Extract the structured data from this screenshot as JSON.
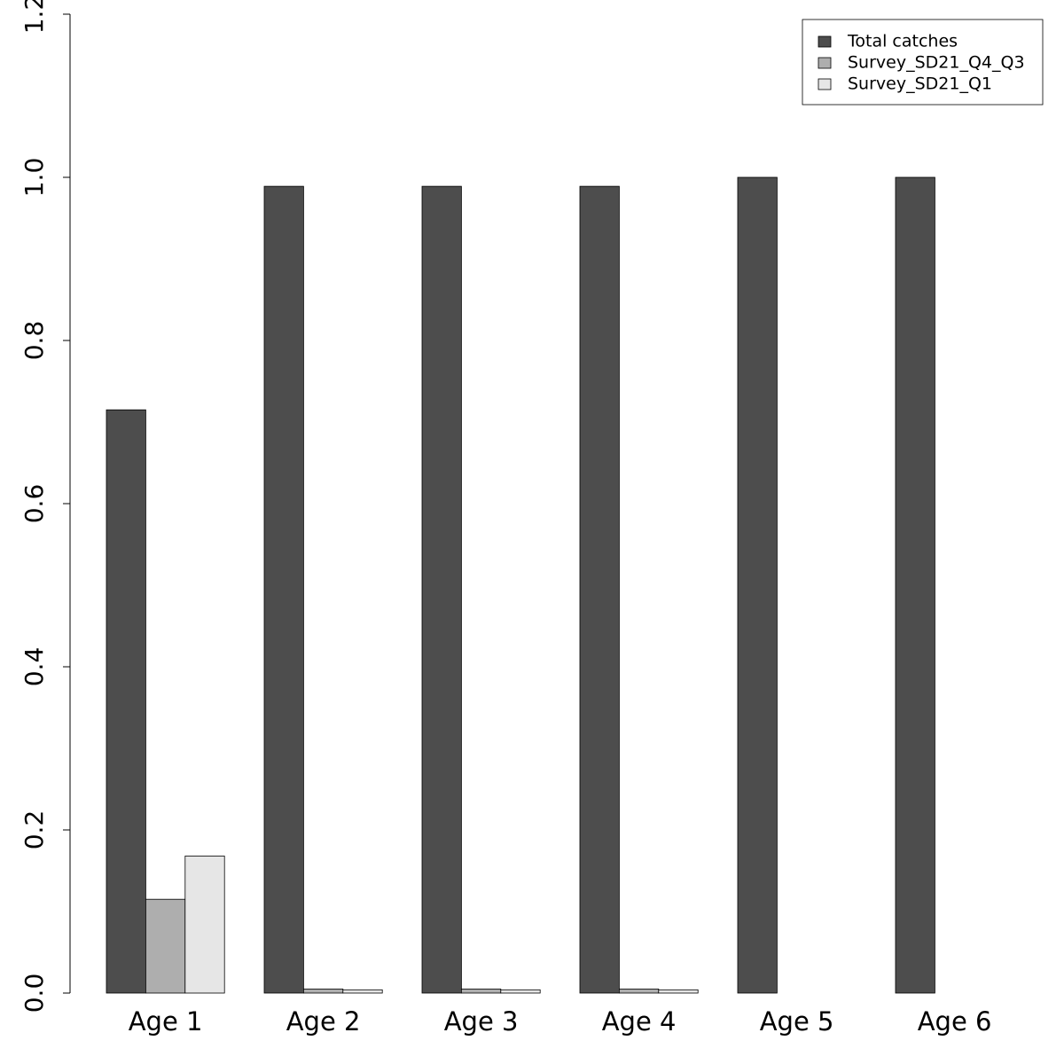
{
  "chart_data": {
    "type": "bar",
    "categories": [
      "Age 1",
      "Age 2",
      "Age 3",
      "Age 4",
      "Age 5",
      "Age 6"
    ],
    "series": [
      {
        "name": "Total catches",
        "color": "#4d4d4d",
        "values": [
          0.715,
          0.989,
          0.989,
          0.989,
          1.0,
          1.0
        ]
      },
      {
        "name": "Survey_SD21_Q4_Q3",
        "color": "#aeaeae",
        "values": [
          0.115,
          0.005,
          0.005,
          0.005,
          0,
          0
        ]
      },
      {
        "name": "Survey_SD21_Q1",
        "color": "#e6e6e6",
        "values": [
          0.168,
          0.004,
          0.004,
          0.004,
          0,
          0
        ]
      }
    ],
    "ylim": [
      0,
      1.2
    ],
    "yticks": [
      {
        "value": 0,
        "label": "0.0"
      },
      0.2,
      0.4,
      0.6,
      0.8,
      {
        "value": 1,
        "label": "1.0"
      },
      1.2
    ],
    "legend": "top-right"
  }
}
